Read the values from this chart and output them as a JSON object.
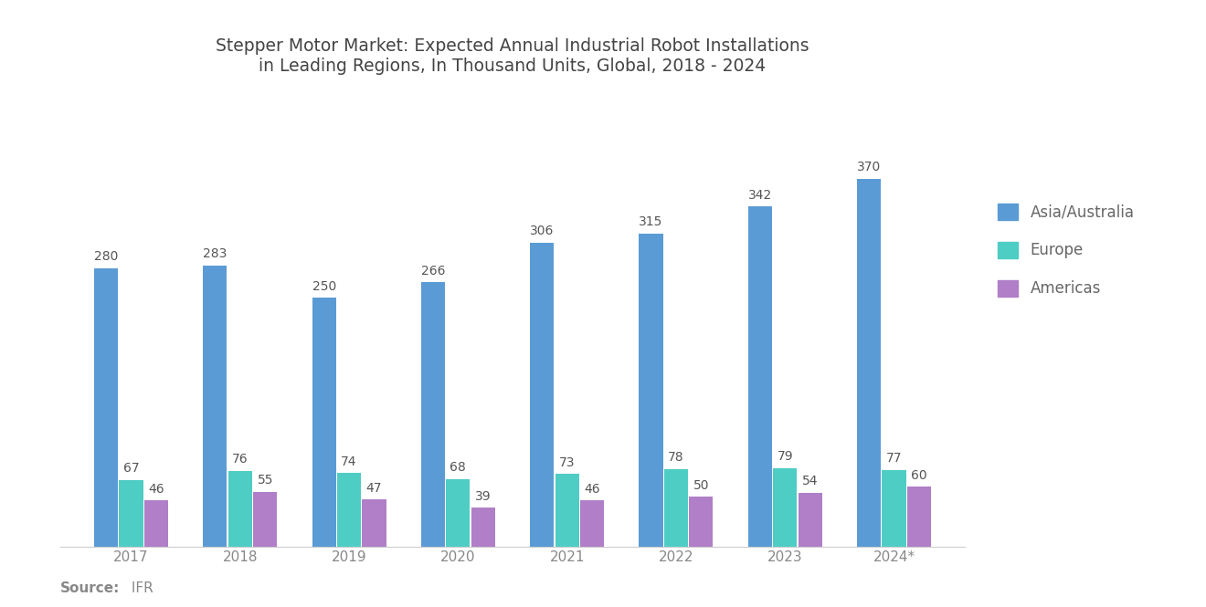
{
  "title": "Stepper Motor Market: Expected Annual Industrial Robot Installations\nin Leading Regions, In Thousand Units, Global, 2018 - 2024",
  "years": [
    "2017",
    "2018",
    "2019",
    "2020",
    "2021",
    "2022",
    "2023",
    "2024*"
  ],
  "asia": [
    280,
    283,
    250,
    266,
    306,
    315,
    342,
    370
  ],
  "europe": [
    67,
    76,
    74,
    68,
    73,
    78,
    79,
    77
  ],
  "americas": [
    46,
    55,
    47,
    39,
    46,
    50,
    54,
    60
  ],
  "color_asia": "#5B9BD5",
  "color_europe": "#4ECDC4",
  "color_americas": "#B07FC7",
  "legend_labels": [
    "Asia/Australia",
    "Europe",
    "Americas"
  ],
  "source_bold": "Source:",
  "source_name": " IFR",
  "background_color": "#FFFFFF",
  "bar_width": 0.22,
  "title_fontsize": 13.5,
  "label_fontsize": 10,
  "tick_fontsize": 11,
  "legend_fontsize": 12,
  "source_fontsize": 11
}
